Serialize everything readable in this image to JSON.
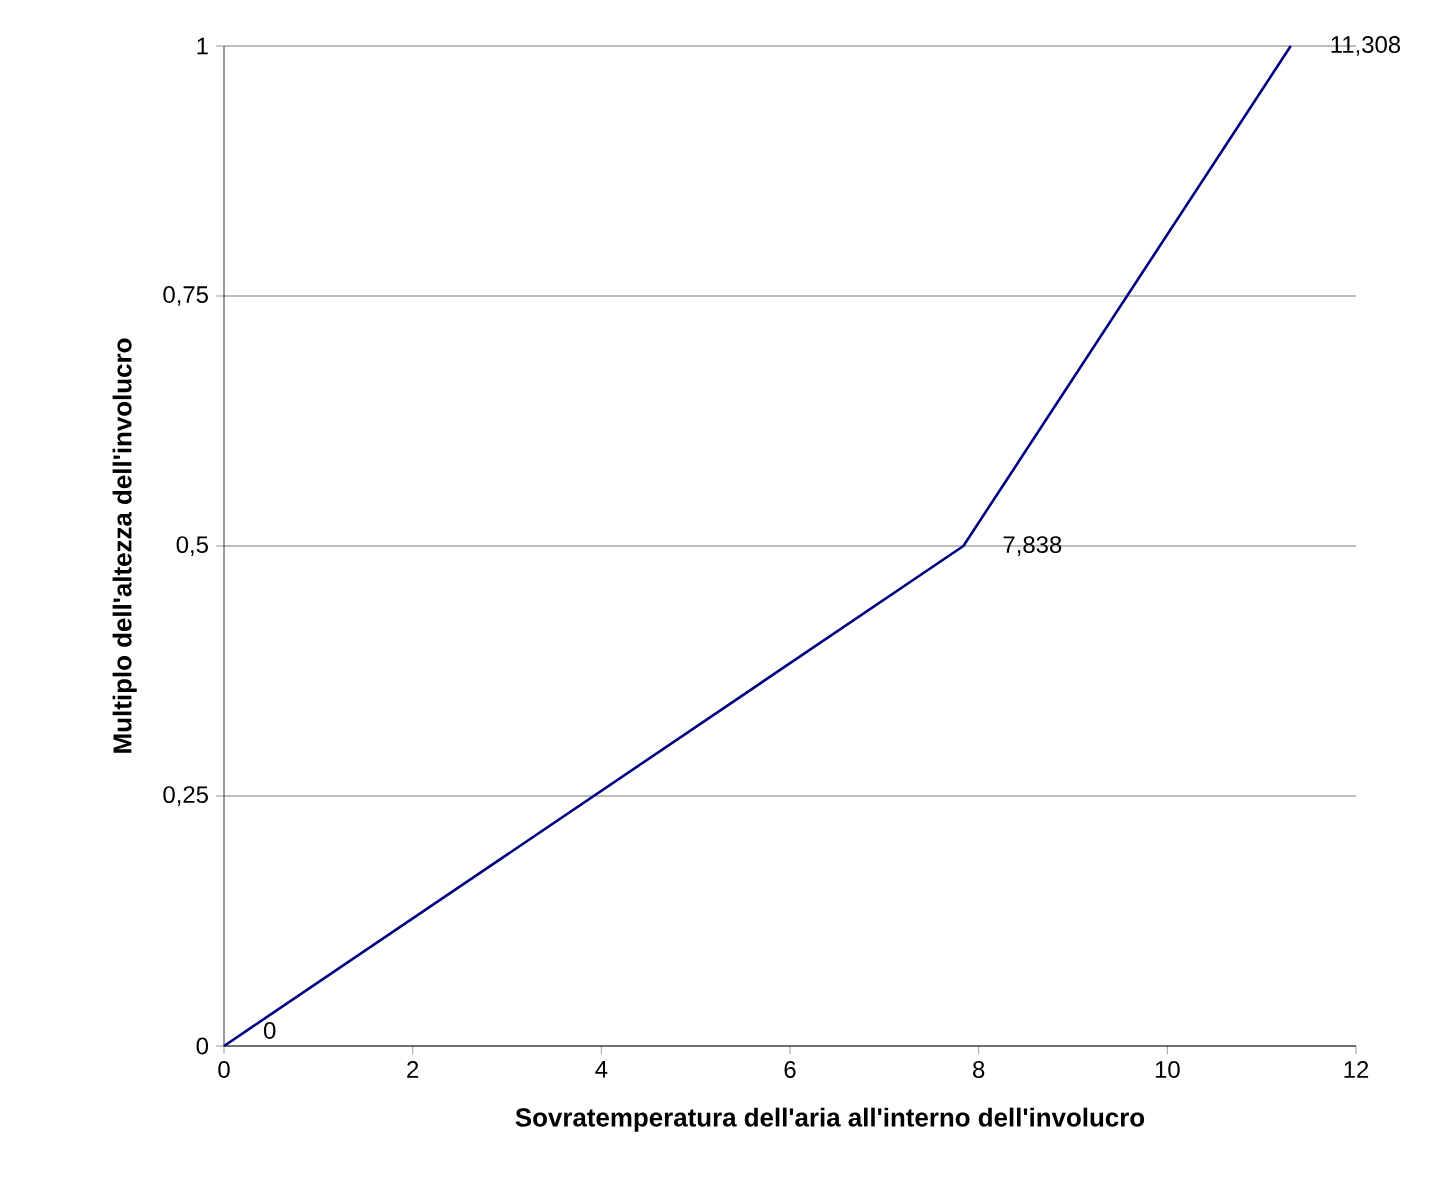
{
  "chart_data": {
    "type": "line",
    "xlabel": "Sovratemperatura dell'aria all'interno dell'involucro",
    "ylabel": "Multiplo dell'altezza dell'involucro",
    "x": [
      0,
      7.838,
      11.308
    ],
    "series": [
      {
        "color": "#000080",
        "values": [
          0,
          0.5,
          1
        ]
      }
    ],
    "annotations": [
      {
        "text": "0",
        "x": 0,
        "y": 0
      },
      {
        "text": "7,838",
        "x": 7.838,
        "y": 0.5
      },
      {
        "text": "11,308",
        "x": 11.308,
        "y": 1
      }
    ],
    "xlim": [
      0,
      12
    ],
    "xticks": [
      0,
      2,
      4,
      6,
      8,
      10,
      12
    ],
    "ylim": [
      0,
      1
    ],
    "yticks": [
      {
        "value": 0,
        "label": "0"
      },
      {
        "value": 0.25,
        "label": "0,25"
      },
      {
        "value": 0.5,
        "label": "0,5"
      },
      {
        "value": 0.75,
        "label": "0,75"
      },
      {
        "value": 1,
        "label": "1"
      }
    ],
    "grid": "y",
    "marker": "none",
    "line_style": "solid"
  }
}
